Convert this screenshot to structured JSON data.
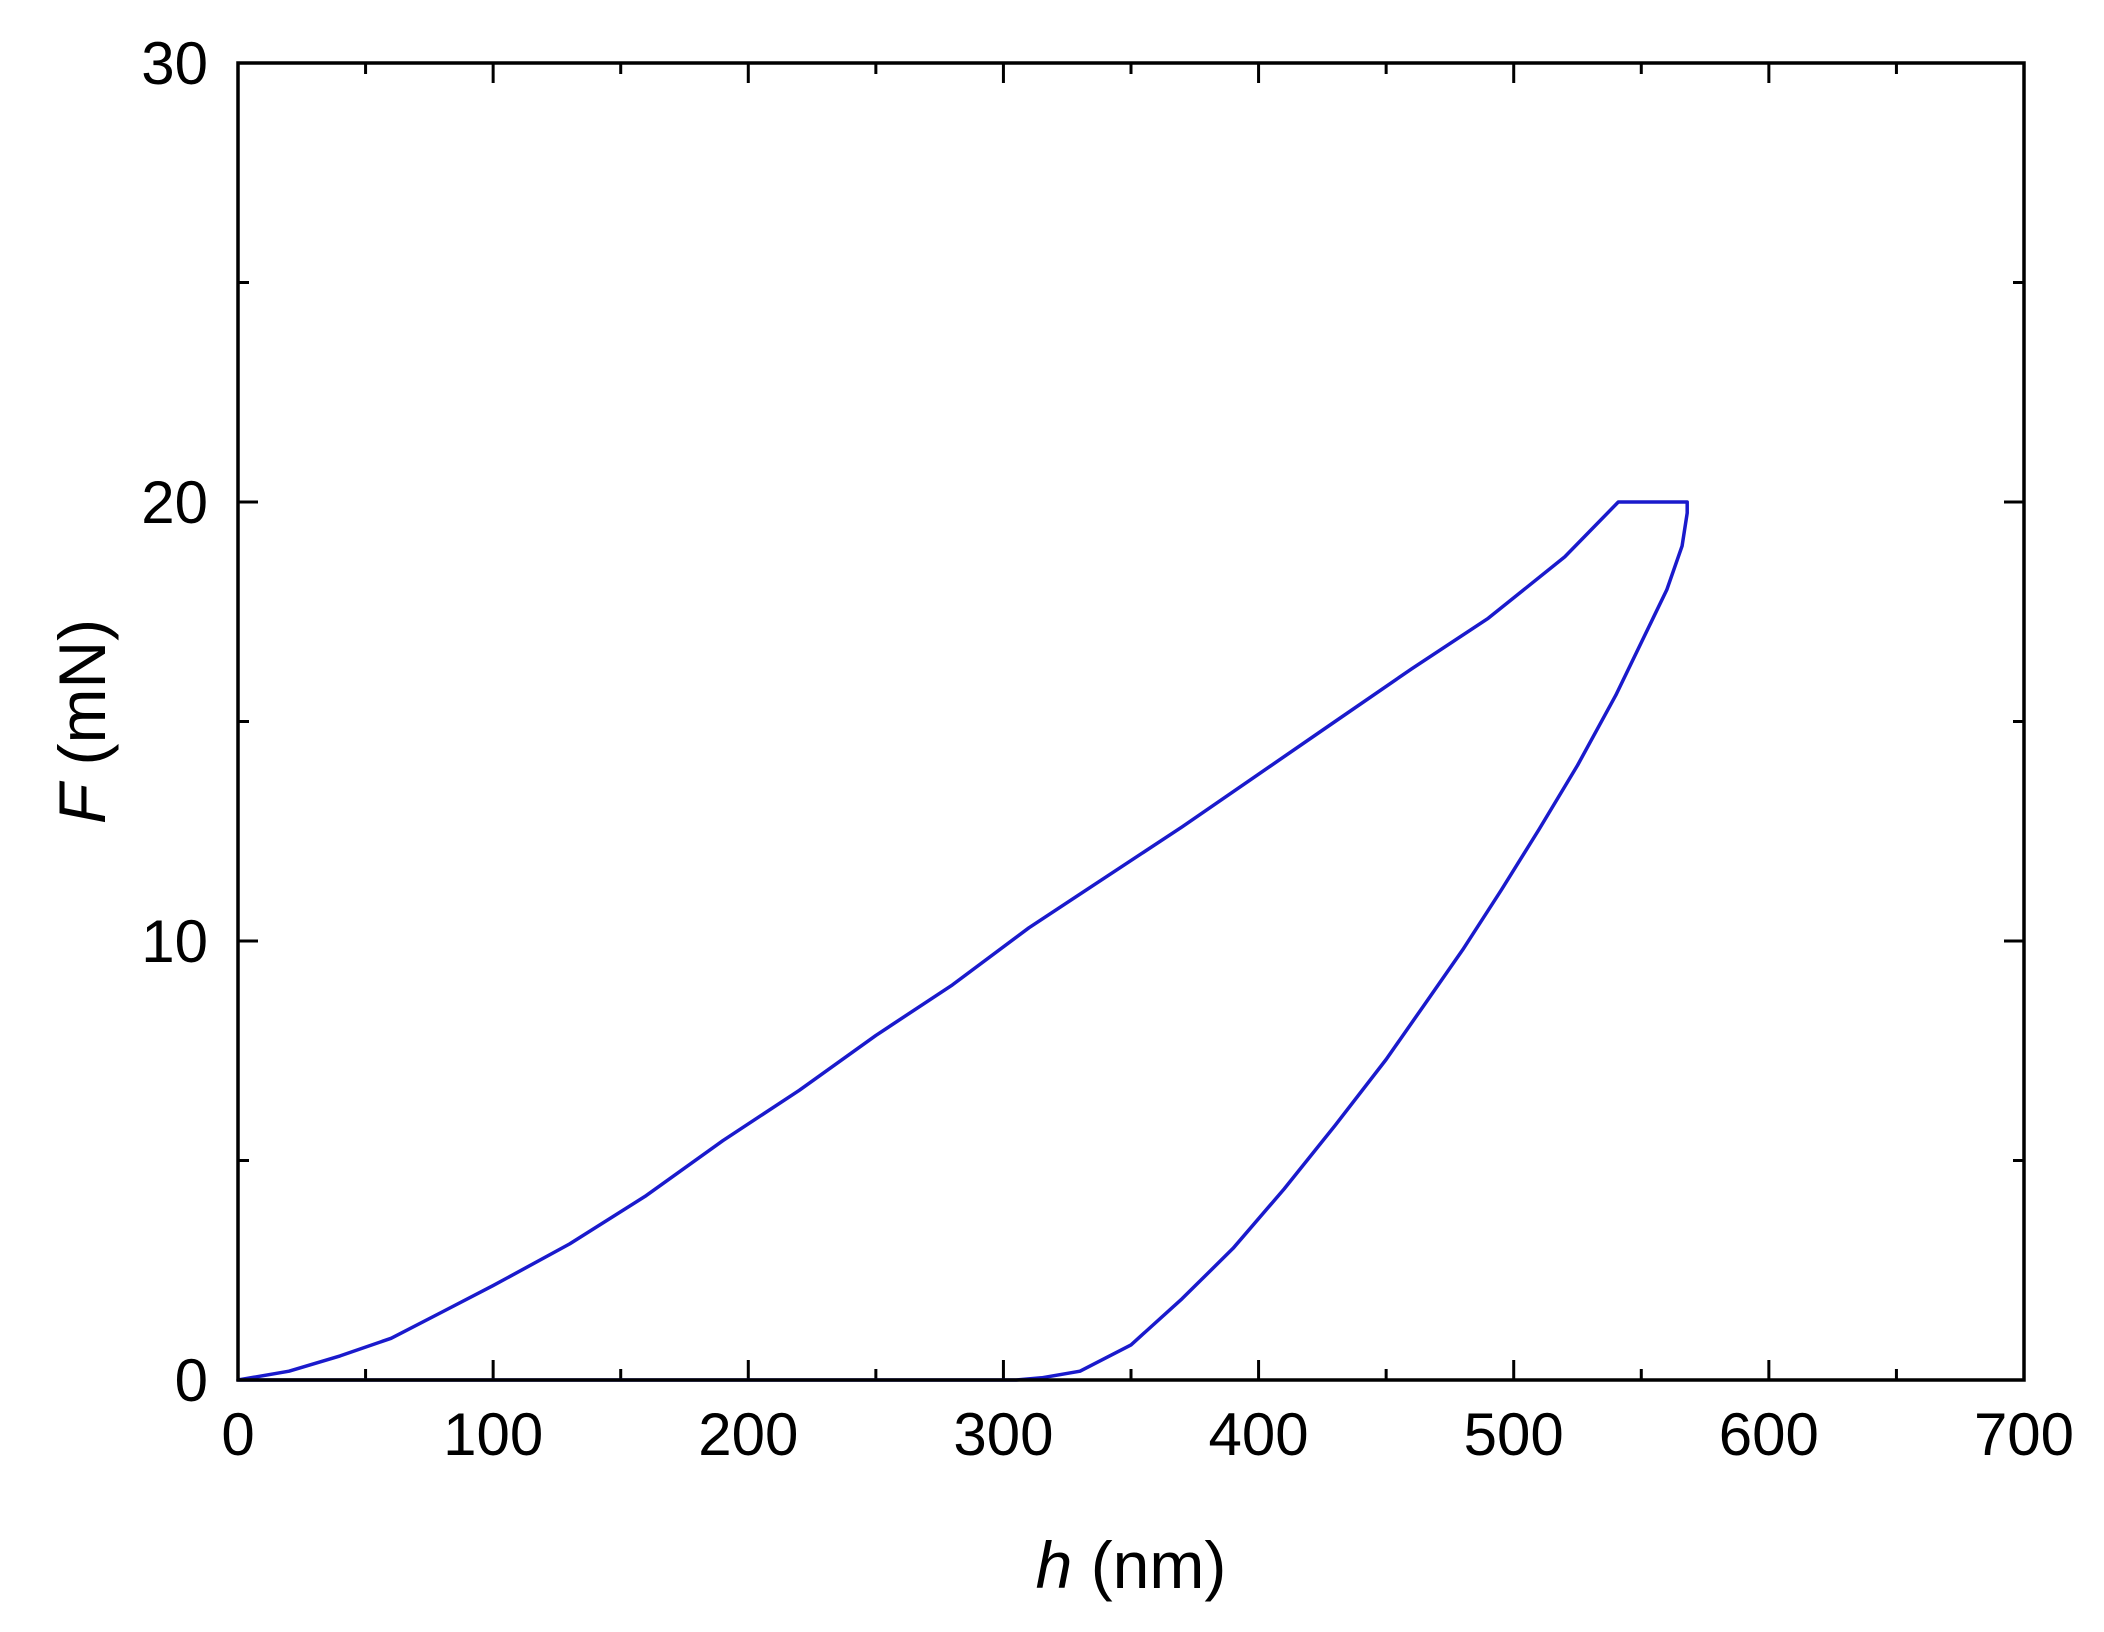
{
  "chart_data": {
    "type": "line",
    "title": "",
    "xlabel": {
      "var": "h",
      "unit": " (nm)"
    },
    "ylabel": {
      "var": "F",
      "unit": " (mN)"
    },
    "xlim": [
      0,
      700
    ],
    "ylim": [
      0,
      30
    ],
    "xticks": [
      0,
      100,
      200,
      300,
      400,
      500,
      600,
      700
    ],
    "yticks": [
      0,
      10,
      20,
      30
    ],
    "x_minor_step": 50,
    "y_minor_step": 5,
    "grid": false,
    "legend": "none",
    "line_color": "#1a1acc",
    "series": [
      {
        "x": [
          0,
          20,
          40,
          60,
          80,
          100,
          130,
          160,
          190,
          220,
          250,
          280,
          310,
          340,
          370,
          400,
          430,
          460,
          490,
          520,
          541,
          568,
          568,
          566,
          560,
          550,
          540,
          525,
          510,
          495,
          480,
          465,
          450,
          430,
          410,
          390,
          370,
          350,
          330,
          315,
          305,
          300,
          296,
          294,
          280,
          200,
          100,
          0
        ],
        "y": [
          0,
          0.2,
          0.55,
          0.95,
          1.55,
          2.15,
          3.1,
          4.2,
          5.45,
          6.6,
          7.85,
          9.0,
          10.3,
          11.45,
          12.6,
          13.8,
          15.0,
          16.2,
          17.35,
          18.75,
          20.0,
          20.0,
          19.75,
          19.0,
          18.0,
          16.8,
          15.6,
          14.0,
          12.55,
          11.15,
          9.8,
          8.55,
          7.3,
          5.8,
          4.35,
          3.0,
          1.85,
          0.8,
          0.2,
          0.05,
          0.0,
          0.0,
          0.0,
          0.0,
          0.0,
          0.0,
          0.0,
          0.0
        ]
      }
    ]
  }
}
